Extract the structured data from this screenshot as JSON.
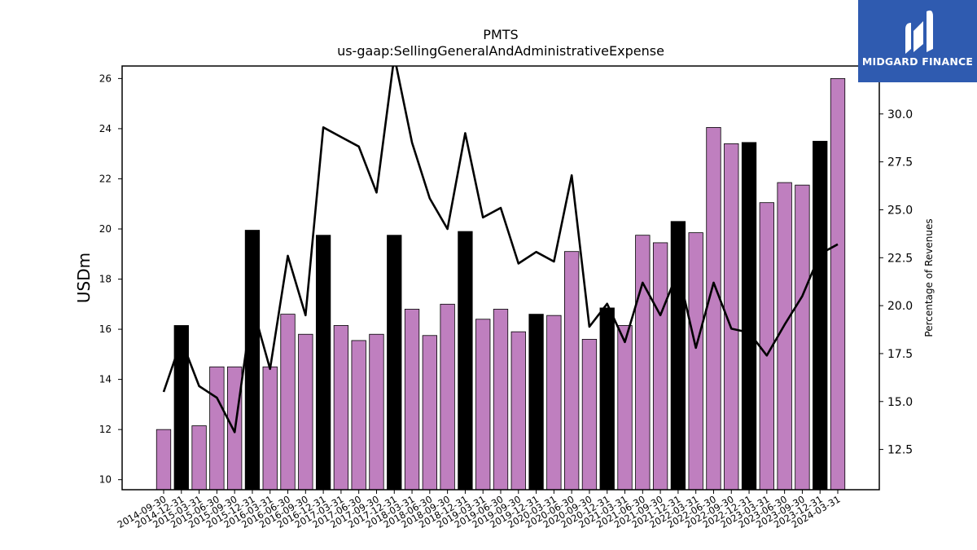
{
  "chart_data": {
    "type": "bar+line",
    "title": "PMTS",
    "subtitle": "us-gaap:SellingGeneralAndAdministrativeExpense",
    "ylabel": "USDm",
    "y2label": "Percentage of Revenues",
    "ylim": [
      9.6,
      26.5
    ],
    "y2lim": [
      10.4,
      32.5
    ],
    "yticks": [
      10,
      12,
      14,
      16,
      18,
      20,
      22,
      24,
      26
    ],
    "y2ticks": [
      12.5,
      15.0,
      17.5,
      20.0,
      22.5,
      25.0,
      27.5,
      30.0
    ],
    "bar_color": "#bf7fbf",
    "bar_highlight_color": "#000000",
    "line_color": "#000000",
    "categories": [
      "2014-09-30",
      "2014-12-31",
      "2015-03-31",
      "2015-06-30",
      "2015-09-30",
      "2015-12-31",
      "2016-03-31",
      "2016-06-30",
      "2016-09-30",
      "2016-12-31",
      "2017-03-31",
      "2017-06-30",
      "2017-09-30",
      "2017-12-31",
      "2018-03-31",
      "2018-06-30",
      "2018-09-30",
      "2018-12-31",
      "2019-03-31",
      "2019-06-30",
      "2019-09-30",
      "2019-12-31",
      "2020-03-31",
      "2020-06-30",
      "2020-09-30",
      "2020-12-31",
      "2021-03-31",
      "2021-06-30",
      "2021-09-30",
      "2021-12-31",
      "2022-03-31",
      "2022-06-30",
      "2022-09-30",
      "2022-12-31",
      "2023-03-31",
      "2023-06-30",
      "2023-09-30",
      "2023-12-31",
      "2024-03-31"
    ],
    "values": [
      12.0,
      16.15,
      12.15,
      14.5,
      14.5,
      19.95,
      14.5,
      16.6,
      15.8,
      19.75,
      16.15,
      15.55,
      15.8,
      19.75,
      16.8,
      15.75,
      17.0,
      19.9,
      16.4,
      16.8,
      15.9,
      16.6,
      16.55,
      19.1,
      15.6,
      16.85,
      16.15,
      19.75,
      19.45,
      20.3,
      19.85,
      24.05,
      23.4,
      23.45,
      21.05,
      21.85,
      21.75,
      23.5,
      26.0
    ],
    "highlight": [
      false,
      true,
      false,
      false,
      false,
      true,
      false,
      false,
      false,
      true,
      false,
      false,
      false,
      true,
      false,
      false,
      false,
      true,
      false,
      false,
      false,
      true,
      false,
      false,
      false,
      true,
      false,
      false,
      false,
      true,
      false,
      false,
      false,
      true,
      false,
      false,
      false,
      true,
      false
    ],
    "pct_revenue": [
      15.5,
      18.2,
      15.8,
      15.2,
      13.4,
      20.0,
      16.7,
      22.6,
      19.5,
      29.3,
      28.8,
      28.3,
      25.9,
      33.0,
      28.5,
      25.6,
      24.0,
      29.0,
      24.6,
      25.1,
      22.2,
      22.8,
      22.3,
      26.8,
      18.9,
      20.1,
      18.1,
      21.2,
      19.5,
      21.8,
      17.8,
      21.2,
      18.8,
      18.6,
      17.4,
      19.0,
      20.5,
      22.7,
      23.2
    ]
  },
  "logo": {
    "text": "MIDGARD FINANCE",
    "background": "#2f5bb0"
  }
}
